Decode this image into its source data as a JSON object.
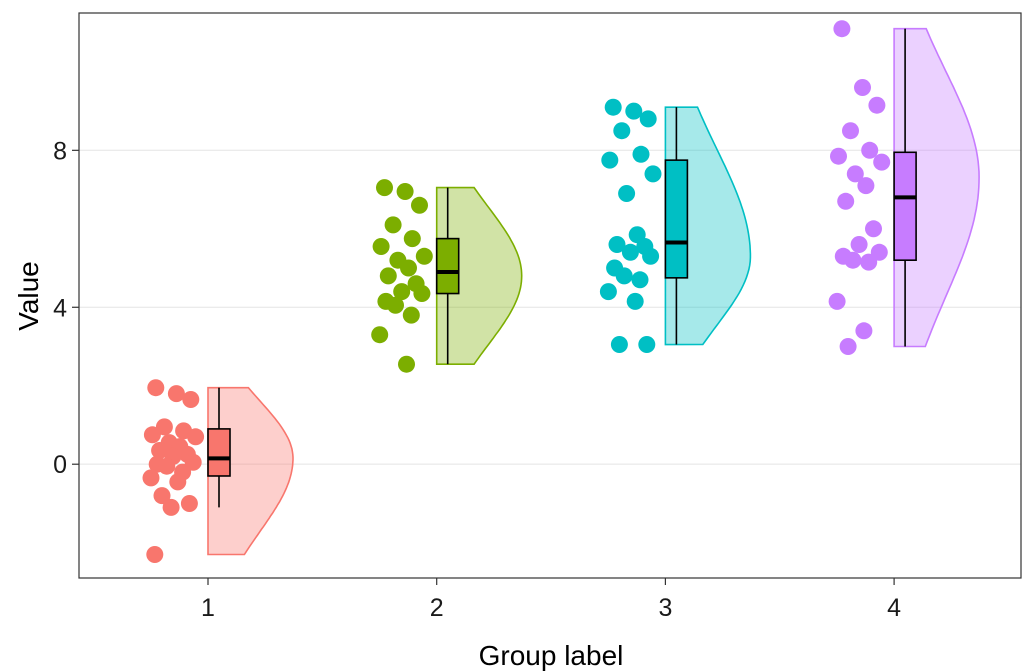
{
  "chart_data": {
    "type": "raincloud",
    "xlabel": "Group label",
    "ylabel": "Value",
    "ylim": [
      -2.9,
      11.5
    ],
    "yticks": [
      0,
      4,
      8
    ],
    "grid": "horizontal major",
    "legend": "none",
    "groups": [
      {
        "label": "1",
        "color": "#F8766D",
        "points": [
          1.95,
          1.8,
          1.65,
          0.95,
          0.85,
          0.75,
          0.7,
          0.55,
          0.45,
          0.35,
          0.25,
          0.2,
          0.05,
          0.0,
          -0.05,
          -0.2,
          -0.35,
          -0.45,
          -0.8,
          -1.0,
          -1.1,
          -2.3
        ],
        "box": {
          "min": -1.1,
          "q1": -0.3,
          "median": 0.15,
          "q3": 0.9,
          "max": 1.95
        },
        "density_range": [
          -2.3,
          1.95
        ],
        "density_peak": 0.15
      },
      {
        "label": "2",
        "color": "#7CAE00",
        "points": [
          7.05,
          6.95,
          6.6,
          6.1,
          5.75,
          5.55,
          5.3,
          5.2,
          5.0,
          4.8,
          4.6,
          4.4,
          4.35,
          4.15,
          4.05,
          3.8,
          3.3,
          2.55
        ],
        "box": {
          "min": 2.55,
          "q1": 4.35,
          "median": 4.9,
          "q3": 5.75,
          "max": 7.05
        },
        "density_range": [
          2.55,
          7.05
        ],
        "density_peak": 4.8
      },
      {
        "label": "3",
        "color": "#00BFC4",
        "points": [
          9.1,
          9.0,
          8.8,
          8.5,
          7.9,
          7.75,
          7.4,
          6.9,
          5.85,
          5.6,
          5.55,
          5.4,
          5.3,
          5.0,
          4.8,
          4.7,
          4.4,
          4.15,
          3.05,
          3.05
        ],
        "box": {
          "min": 3.05,
          "q1": 4.75,
          "median": 5.65,
          "q3": 7.75,
          "max": 9.1
        },
        "density_range": [
          3.05,
          9.1
        ],
        "density_peak": 5.3
      },
      {
        "label": "4",
        "color": "#C77CFF",
        "points": [
          11.1,
          9.6,
          9.15,
          8.5,
          8.0,
          7.85,
          7.7,
          7.4,
          7.1,
          6.7,
          6.0,
          5.6,
          5.4,
          5.3,
          5.2,
          5.15,
          4.15,
          3.4,
          3.0
        ],
        "box": {
          "min": 3.0,
          "q1": 5.2,
          "median": 6.8,
          "q3": 7.95,
          "max": 11.1
        },
        "density_range": [
          3.0,
          11.1
        ],
        "density_peak": 7.3
      }
    ]
  }
}
